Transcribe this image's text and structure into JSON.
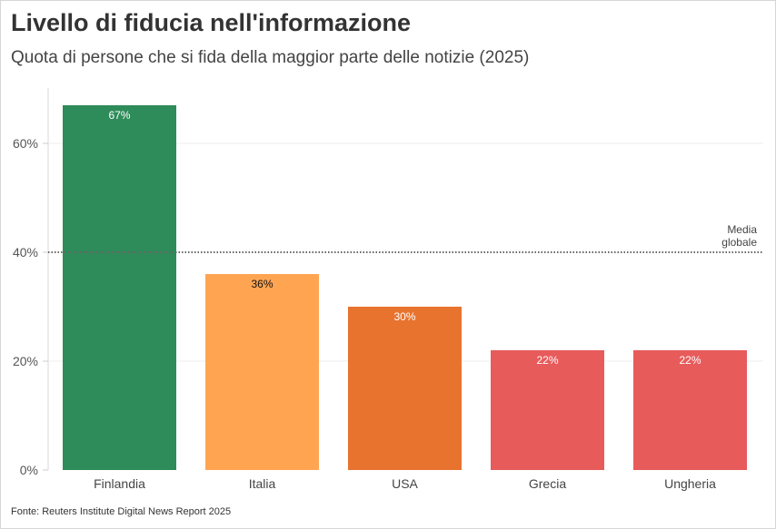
{
  "chart_data": {
    "type": "bar",
    "title": "Livello di fiducia nell'informazione",
    "subtitle": "Quota di persone che si fida della maggior parte delle notizie (2025)",
    "categories": [
      "Finlandia",
      "Italia",
      "USA",
      "Grecia",
      "Ungheria"
    ],
    "values": [
      67,
      36,
      30,
      22,
      22
    ],
    "data_labels": [
      "67%",
      "36%",
      "30%",
      "22%",
      "22%"
    ],
    "colors": [
      "#2e8b5a",
      "#ffa552",
      "#e8732f",
      "#e85b5b",
      "#e85b5b"
    ],
    "label_colors": [
      "#ffffff",
      "#111111",
      "#ffffff",
      "#ffffff",
      "#ffffff"
    ],
    "ylim": [
      0,
      70
    ],
    "yticks": [
      0,
      20,
      40,
      60
    ],
    "ytick_labels": [
      "0%",
      "20%",
      "40%",
      "60%"
    ],
    "grid": true,
    "reference_line": {
      "value": 40,
      "label_line1": "Media",
      "label_line2": "globale"
    },
    "source": "Fonte: Reuters Institute Digital News Report 2025"
  }
}
